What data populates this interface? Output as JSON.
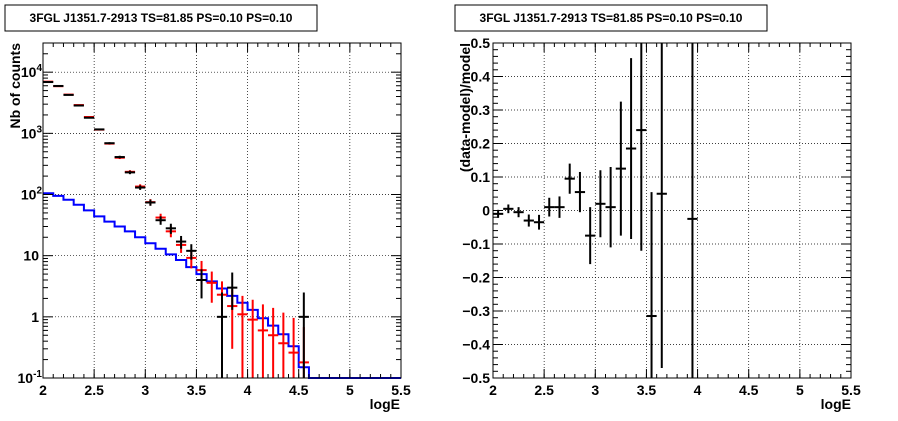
{
  "chart_data": [
    {
      "type": "line",
      "title": "3FGL J1351.7-2913 TS=81.85 PS=0.10 PS=0.10",
      "xlabel": "logE",
      "ylabel": "Nb of counts",
      "xlim": [
        2,
        5.5
      ],
      "ylim": [
        0.1,
        30000
      ],
      "yscale": "log",
      "grid": true,
      "xticks": [
        "2",
        "2.5",
        "3",
        "3.5",
        "4",
        "4.5",
        "5",
        "5.5"
      ],
      "yticks": [
        {
          "value": 0.1,
          "base": "10",
          "exp": "-1"
        },
        {
          "value": 1,
          "base": "1",
          "exp": ""
        },
        {
          "value": 10,
          "base": "10",
          "exp": ""
        },
        {
          "value": 100,
          "base": "10",
          "exp": "2"
        },
        {
          "value": 1000,
          "base": "10",
          "exp": "3"
        },
        {
          "value": 10000,
          "base": "10",
          "exp": "4"
        }
      ],
      "series": [
        {
          "color": "#0000ff",
          "style": "step",
          "edges": [
            2,
            2.1,
            2.2,
            2.3,
            2.4,
            2.5,
            2.6,
            2.7,
            2.8,
            2.9,
            3.0,
            3.1,
            3.2,
            3.3,
            3.4,
            3.5,
            3.6,
            3.7,
            3.8,
            3.9,
            4.0,
            4.1,
            4.2,
            4.3,
            4.4,
            4.5,
            4.6,
            4.7,
            4.8,
            4.9,
            5.0,
            5.1,
            5.2,
            5.3,
            5.4,
            5.5
          ],
          "values": [
            105,
            95,
            82,
            68,
            55,
            44,
            36,
            30,
            25,
            20,
            16,
            13,
            10.5,
            8.5,
            6.5,
            5.0,
            3.8,
            2.9,
            2.2,
            1.7,
            1.3,
            0.95,
            0.72,
            0.52,
            0.33,
            0.15,
            0.1,
            0.1,
            0.1,
            0.1,
            0.1,
            0.1,
            0.1,
            0.1,
            0.1
          ]
        },
        {
          "color": "#ff0000",
          "style": "errorbar",
          "x": [
            2.05,
            2.15,
            2.25,
            2.35,
            2.45,
            2.55,
            2.65,
            2.75,
            2.85,
            2.95,
            3.05,
            3.15,
            3.25,
            3.35,
            3.45,
            3.55,
            3.65,
            3.75,
            3.85,
            3.95,
            4.05,
            4.15,
            4.25,
            4.35,
            4.45,
            4.55
          ],
          "y": [
            7000,
            5900,
            4300,
            2900,
            1850,
            1150,
            680,
            400,
            235,
            135,
            75,
            42,
            25,
            15,
            9.2,
            5.8,
            3.6,
            2.3,
            1.5,
            1.1,
            0.9,
            0.6,
            0.5,
            0.37,
            0.26,
            0.18
          ],
          "yerr_low": [
            80,
            75,
            65,
            55,
            43,
            34,
            26,
            20,
            15,
            12,
            9,
            6.5,
            5,
            3.9,
            3.0,
            2.4,
            1.9,
            1.5,
            1.2,
            1.0,
            0.8,
            0.5,
            0.4,
            0.3,
            0.2,
            0.1
          ],
          "yerr_high": [
            80,
            75,
            65,
            55,
            43,
            34,
            26,
            20,
            15,
            12,
            9,
            6.5,
            5,
            3.9,
            3.0,
            2.4,
            1.9,
            1.5,
            1.3,
            1.1,
            1.0,
            1.0,
            0.9,
            0.8,
            0.7,
            0.5
          ]
        },
        {
          "color": "#000000",
          "style": "errorbar",
          "x": [
            2.05,
            2.15,
            2.25,
            2.35,
            2.45,
            2.55,
            2.65,
            2.75,
            2.85,
            2.95,
            3.05,
            3.15,
            3.25,
            3.35,
            3.45,
            3.55,
            3.75,
            3.85,
            4.55
          ],
          "y": [
            6900,
            5950,
            4250,
            2850,
            1800,
            1160,
            690,
            410,
            230,
            130,
            74,
            38,
            28,
            17,
            12,
            4,
            1,
            3,
            1
          ],
          "yerr_low": [
            83,
            77,
            65,
            53,
            42,
            34,
            26,
            20,
            15,
            11,
            8.6,
            6,
            5.3,
            4,
            3.4,
            2,
            1,
            1.7,
            1
          ],
          "yerr_high": [
            83,
            77,
            65,
            53,
            42,
            34,
            26,
            20,
            15,
            11,
            8.6,
            6,
            5.3,
            4,
            3.4,
            2,
            1.5,
            2.3,
            1.5
          ]
        }
      ]
    },
    {
      "type": "scatter",
      "title": "3FGL J1351.7-2913 TS=81.85 PS=0.10 PS=0.10",
      "xlabel": "logE",
      "ylabel": "(data-model)/model",
      "xlim": [
        2,
        5.5
      ],
      "ylim": [
        -0.5,
        0.5
      ],
      "grid": true,
      "xticks": [
        "2",
        "2.5",
        "3",
        "3.5",
        "4",
        "4.5",
        "5",
        "5.5"
      ],
      "yticks": [
        "-0.5",
        "-0.4",
        "-0.3",
        "-0.2",
        "-0.1",
        "0",
        "0.1",
        "0.2",
        "0.3",
        "0.4",
        "0.5"
      ],
      "series": [
        {
          "color": "#000000",
          "style": "errorbar",
          "x": [
            2.05,
            2.15,
            2.25,
            2.35,
            2.45,
            2.55,
            2.65,
            2.75,
            2.85,
            2.95,
            3.05,
            3.15,
            3.25,
            3.35,
            3.45,
            3.55,
            3.65,
            3.95
          ],
          "y": [
            -0.01,
            0.005,
            -0.005,
            -0.03,
            -0.035,
            0.01,
            0.01,
            0.095,
            0.055,
            -0.075,
            0.02,
            0.01,
            0.125,
            0.185,
            0.24,
            -0.315,
            0.05,
            -0.025
          ],
          "yerr": [
            0.012,
            0.013,
            0.015,
            0.018,
            0.022,
            0.028,
            0.032,
            0.045,
            0.06,
            0.085,
            0.1,
            0.12,
            0.2,
            0.27,
            0.36,
            0.37,
            0.52,
            1.0
          ]
        }
      ]
    }
  ]
}
